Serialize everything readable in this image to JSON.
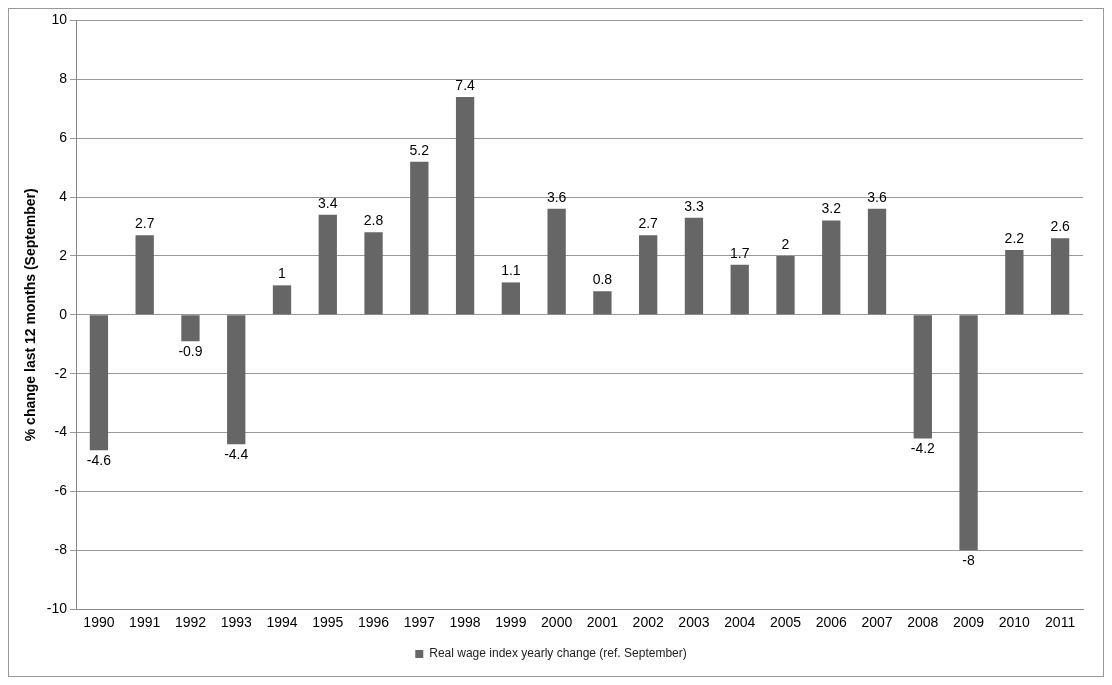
{
  "chart_data": {
    "type": "bar",
    "ylabel": "% change last 12 months (September)",
    "categories": [
      "1990",
      "1991",
      "1992",
      "1993",
      "1994",
      "1995",
      "1996",
      "1997",
      "1998",
      "1999",
      "2000",
      "2001",
      "2002",
      "2003",
      "2004",
      "2005",
      "2006",
      "2007",
      "2008",
      "2009",
      "2010",
      "2011"
    ],
    "series": [
      {
        "name": "Real wage index yearly change (ref. September)",
        "color": "#666666",
        "values": [
          -4.6,
          2.7,
          -0.9,
          -4.4,
          1,
          3.4,
          2.8,
          5.2,
          7.4,
          1.1,
          3.6,
          0.8,
          2.7,
          3.3,
          1.7,
          2,
          3.2,
          3.6,
          -4.2,
          -8,
          2.2,
          2.6
        ]
      }
    ],
    "ylim": [
      -10,
      10
    ],
    "yticks": [
      -10,
      -8,
      -6,
      -4,
      -2,
      0,
      2,
      4,
      6,
      8,
      10
    ],
    "grid": "y",
    "legend": "bottom",
    "data_labels": true
  }
}
